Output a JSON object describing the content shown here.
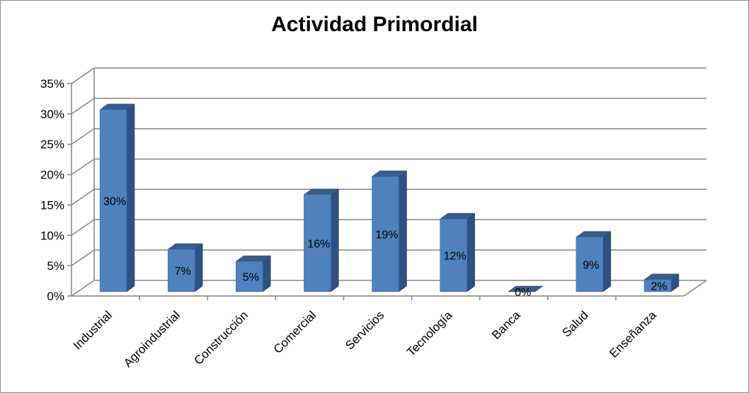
{
  "chart_data": {
    "type": "bar",
    "title": "Actividad Primordial",
    "categories": [
      "Industrial",
      "Agroindustrial",
      "Construcción",
      "Comercial",
      "Servicios",
      "Tecnología",
      "Banca",
      "Salud",
      "Enseñanza"
    ],
    "values": [
      30,
      7,
      5,
      16,
      19,
      12,
      0,
      9,
      2
    ],
    "data_labels": [
      "30%",
      "7%",
      "5%",
      "16%",
      "19%",
      "12%",
      "0%",
      "9%",
      "2%"
    ],
    "ylim": [
      0,
      35
    ],
    "yticks": [
      "0%",
      "5%",
      "10%",
      "15%",
      "20%",
      "25%",
      "30%",
      "35%"
    ],
    "xlabel": "",
    "ylabel": "",
    "grid": true,
    "bar_color": "#4f81bd",
    "bar_side_color": "#2f5182",
    "bar_top_color": "#385d8a"
  }
}
